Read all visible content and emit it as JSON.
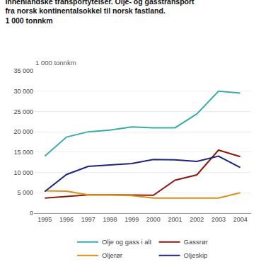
{
  "chart_data": {
    "type": "line",
    "title": "Innenlandske transportytelser. Olje- og gasstransport\nfra norsk kontinentalsokkel til norsk fastland.\n1 000 tonnkm",
    "y_label": "1 000 tonnkm",
    "x": [
      1995,
      1996,
      1997,
      1998,
      1999,
      2000,
      2001,
      2002,
      2003,
      2004
    ],
    "series": [
      {
        "name": "Olje og gass i alt",
        "color": "#3AADA8",
        "values": [
          14000,
          18700,
          20000,
          20400,
          21200,
          21000,
          21000,
          24400,
          30000,
          29500
        ]
      },
      {
        "name": "Gassrør",
        "color": "#8B1A10",
        "values": [
          3700,
          4100,
          4500,
          4500,
          4500,
          4400,
          8100,
          9400,
          15500,
          13900
        ]
      },
      {
        "name": "Oljerør",
        "color": "#D4901A",
        "values": [
          5500,
          5400,
          4500,
          4500,
          4300,
          3700,
          3700,
          3700,
          3700,
          5000
        ]
      },
      {
        "name": "Oljeskip",
        "color": "#1C2680",
        "values": [
          5300,
          9500,
          11500,
          11900,
          12200,
          13200,
          13100,
          12700,
          14000,
          11200
        ]
      }
    ],
    "xlim": [
      1994.5,
      2004.5
    ],
    "xticks": [
      1995,
      1996,
      1997,
      1998,
      1999,
      2000,
      2001,
      2002,
      2003,
      2004
    ],
    "ylim": [
      0,
      35000
    ],
    "yticks": [
      0,
      {
        "value": 5000,
        "label": "5 000"
      },
      {
        "value": 10000,
        "label": "10 000"
      },
      {
        "value": 15000,
        "label": "15 000"
      },
      {
        "value": 20000,
        "label": "20 000"
      },
      {
        "value": 25000,
        "label": "25 000"
      },
      {
        "value": 30000,
        "label": "30 000"
      },
      {
        "value": 35000,
        "label": "35 000"
      }
    ],
    "grid": true,
    "legend": "bottom"
  }
}
